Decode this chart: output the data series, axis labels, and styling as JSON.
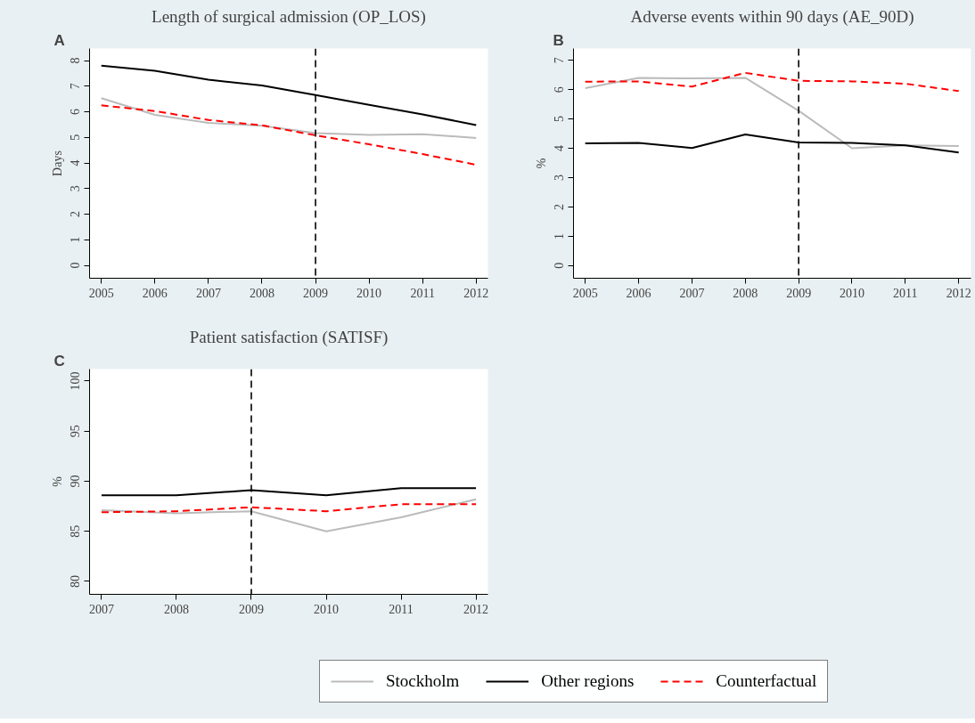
{
  "chart_data": [
    {
      "type": "line",
      "title": "Length of surgical admission (OP_LOS)",
      "annotations": [
        "A"
      ],
      "ylabel": "Days",
      "x": [
        2005,
        2006,
        2007,
        2008,
        2009,
        2010,
        2011,
        2012
      ],
      "xlim": [
        2004.78,
        2012.22
      ],
      "xticks": [
        2005,
        2006,
        2007,
        2008,
        2009,
        2010,
        2011,
        2012
      ],
      "ylim": [
        -0.5,
        8.47
      ],
      "yticks": [
        0,
        1,
        2,
        3,
        4,
        5,
        6,
        7,
        8
      ],
      "grid": false,
      "legend": false,
      "ref_lines": [
        {
          "axis": "x",
          "value": 2009,
          "label": null,
          "color": "#000000",
          "line_style": "dashed"
        }
      ],
      "series": [
        {
          "color": "#bbbbbb",
          "line_style": "solid",
          "values": [
            6.53,
            5.88,
            5.57,
            5.45,
            5.17,
            5.1,
            5.12,
            4.98
          ]
        },
        {
          "color": "#000000",
          "line_style": "solid",
          "values": [
            7.8,
            7.6,
            7.25,
            7.03,
            6.65,
            6.27,
            5.9,
            5.48
          ]
        },
        {
          "color": "#ff0000",
          "line_style": "dashed",
          "values": [
            6.25,
            6.03,
            5.68,
            5.47,
            5.08,
            4.73,
            4.35,
            3.93
          ]
        }
      ]
    },
    {
      "type": "line",
      "title": "Adverse events within 90 days (AE_90D)",
      "annotations": [
        "B"
      ],
      "ylabel": "%",
      "x": [
        2005,
        2006,
        2007,
        2008,
        2009,
        2010,
        2011,
        2012
      ],
      "xlim": [
        2004.78,
        2012.23
      ],
      "xticks": [
        2005,
        2006,
        2007,
        2008,
        2009,
        2010,
        2011,
        2012
      ],
      "ylim": [
        -0.43,
        7.4
      ],
      "yticks": [
        0,
        1,
        2,
        3,
        4,
        5,
        6,
        7
      ],
      "grid": false,
      "legend": false,
      "ref_lines": [
        {
          "axis": "x",
          "value": 2009,
          "label": null,
          "color": "#000000",
          "line_style": "dashed"
        }
      ],
      "series": [
        {
          "color": "#bbbbbb",
          "line_style": "solid",
          "values": [
            6.05,
            6.4,
            6.38,
            6.4,
            5.28,
            4.0,
            4.1,
            4.08
          ]
        },
        {
          "color": "#000000",
          "line_style": "solid",
          "values": [
            4.17,
            4.18,
            4.01,
            4.47,
            4.2,
            4.18,
            4.1,
            3.86
          ]
        },
        {
          "color": "#ff0000",
          "line_style": "dashed",
          "values": [
            6.27,
            6.28,
            6.1,
            6.57,
            6.3,
            6.28,
            6.2,
            5.95
          ]
        }
      ]
    },
    {
      "type": "line",
      "title": "Patient satisfaction (SATISF)",
      "annotations": [
        "C"
      ],
      "ylabel": "%",
      "x": [
        2007,
        2008,
        2009,
        2010,
        2011,
        2012
      ],
      "xlim": [
        2006.84,
        2012.16
      ],
      "xticks": [
        2007,
        2008,
        2009,
        2010,
        2011,
        2012
      ],
      "ylim": [
        78.7,
        101.2
      ],
      "yticks": [
        80,
        85,
        90,
        95,
        100
      ],
      "grid": false,
      "legend": "bottom",
      "ref_lines": [
        {
          "axis": "x",
          "value": 2009,
          "label": null,
          "color": "#000000",
          "line_style": "dashed"
        }
      ],
      "series": [
        {
          "name": "Stockholm",
          "color": "#bbbbbb",
          "line_style": "solid",
          "values": [
            87.1,
            86.8,
            87.0,
            85.0,
            86.4,
            88.2
          ]
        },
        {
          "name": "Other regions",
          "color": "#000000",
          "line_style": "solid",
          "values": [
            88.6,
            88.6,
            89.1,
            88.6,
            89.3,
            89.3
          ]
        },
        {
          "name": "Counterfactual",
          "color": "#ff0000",
          "line_style": "dashed",
          "values": [
            86.9,
            87.0,
            87.4,
            87.0,
            87.7,
            87.7
          ]
        }
      ]
    }
  ]
}
